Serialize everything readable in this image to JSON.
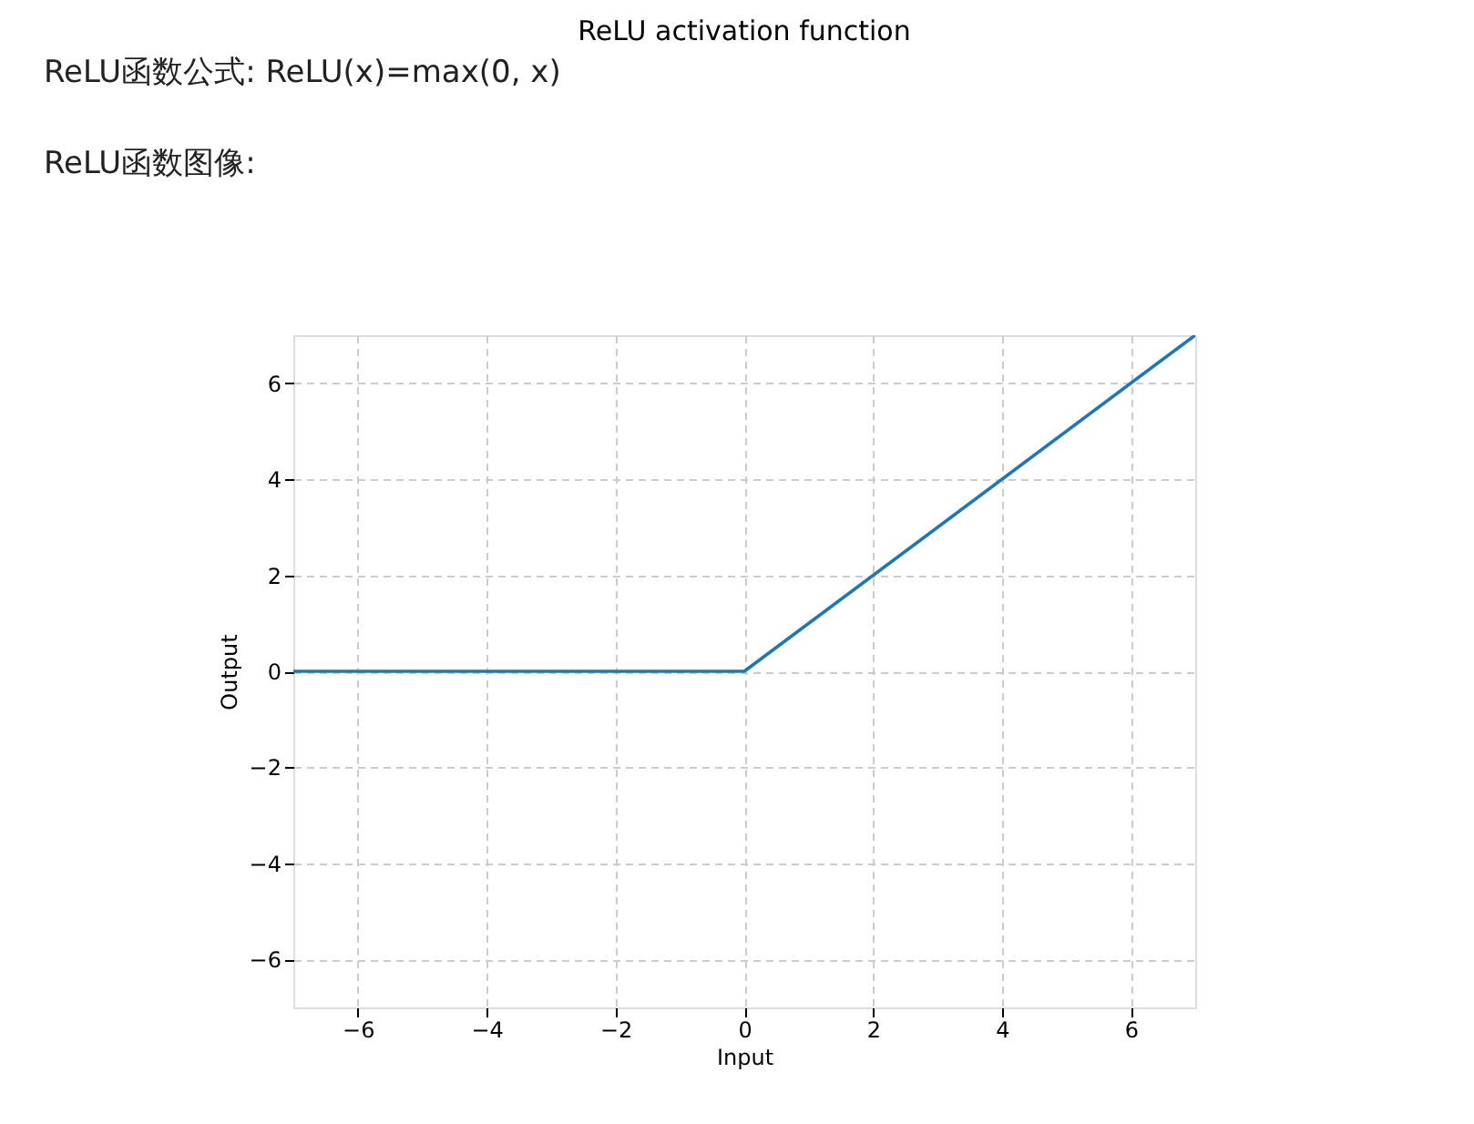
{
  "chart_data": {
    "type": "line",
    "title": "ReLU activation function",
    "xlabel": "Input",
    "ylabel": "Output",
    "annotations": [
      "ReLU函数公式: ReLU(x)=max(0, x)",
      "ReLU函数图像:"
    ],
    "series": [
      {
        "color": "#1f77b4",
        "x": [
          -7,
          0,
          7
        ],
        "values": [
          0,
          0,
          7
        ]
      }
    ],
    "xlim": [
      -7,
      7
    ],
    "ylim": [
      -7,
      7
    ],
    "xticks": [
      -6,
      -4,
      -2,
      0,
      2,
      4,
      6
    ],
    "yticks": [
      -6,
      -4,
      -2,
      0,
      2,
      4,
      6
    ],
    "grid": true,
    "line_style": "solid",
    "marker": "none",
    "legend": false
  }
}
